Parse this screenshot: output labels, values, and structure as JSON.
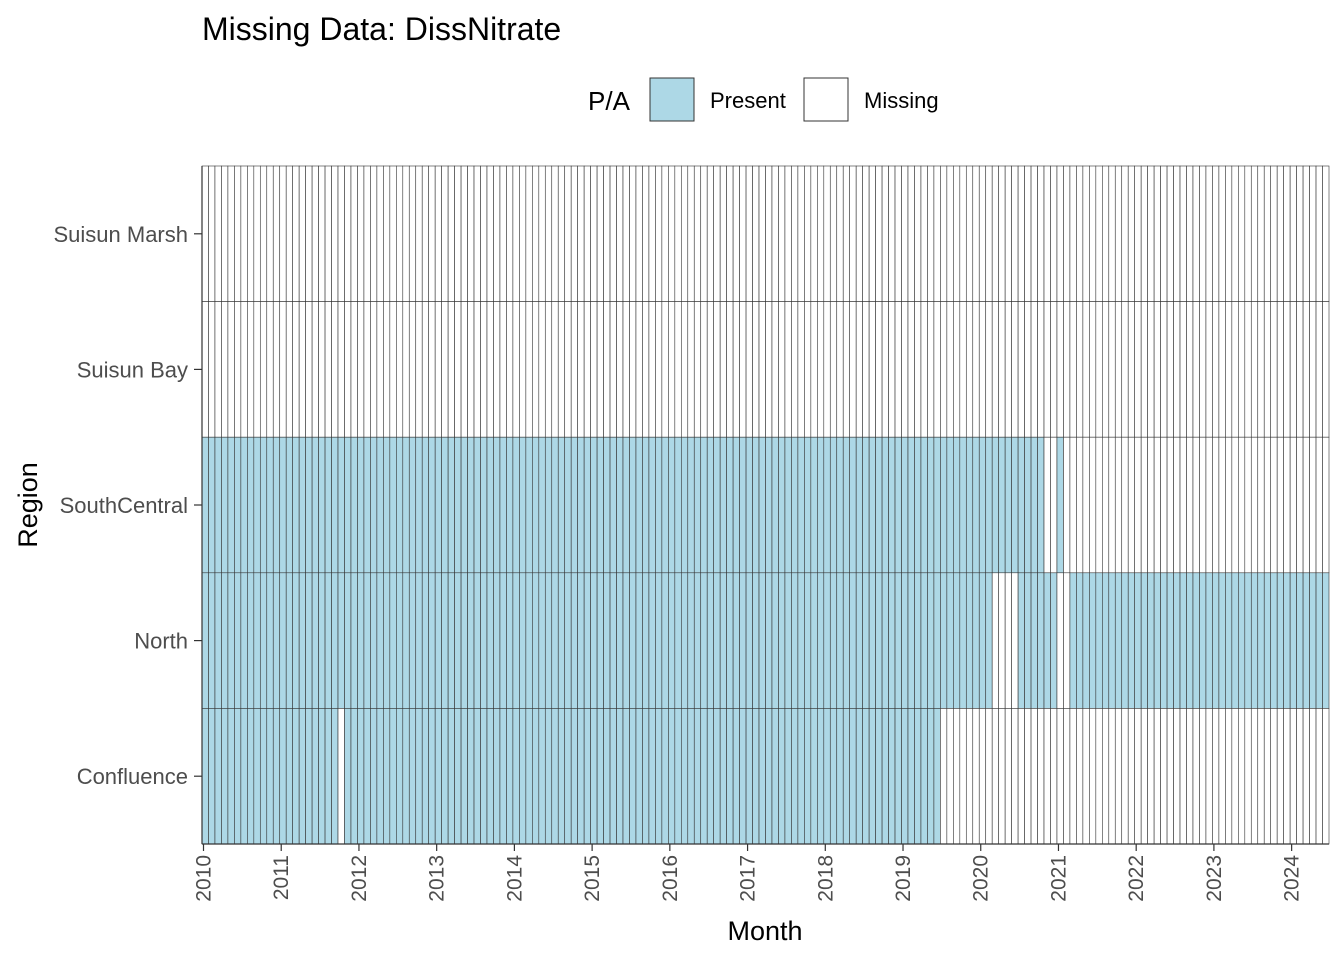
{
  "chart_data": {
    "type": "heatmap",
    "title": "Missing Data: DissNitrate",
    "xlabel": "Month",
    "ylabel": "Region",
    "legend": {
      "title": "P/A",
      "placement": "top",
      "entries": [
        {
          "label": "Present",
          "color": "#add8e6"
        },
        {
          "label": "Missing",
          "color": "#ffffff"
        }
      ]
    },
    "x_range": [
      "2010-01",
      "2024-06"
    ],
    "x_ticks": [
      "2010",
      "2011",
      "2012",
      "2013",
      "2014",
      "2015",
      "2016",
      "2017",
      "2018",
      "2019",
      "2020",
      "2021",
      "2022",
      "2023",
      "2024"
    ],
    "regions": [
      "Suisun Marsh",
      "Suisun Bay",
      "SouthCentral",
      "North",
      "Confluence"
    ],
    "present_periods": {
      "Suisun Marsh": [],
      "Suisun Bay": [],
      "SouthCentral": [
        [
          "2010-01",
          "2020-10"
        ],
        [
          "2021-01",
          "2021-01"
        ]
      ],
      "North": [
        [
          "2010-01",
          "2020-02"
        ],
        [
          "2020-07",
          "2020-12"
        ],
        [
          "2021-03",
          "2024-06"
        ]
      ],
      "Confluence": [
        [
          "2010-01",
          "2011-09"
        ],
        [
          "2011-11",
          "2019-06"
        ]
      ]
    },
    "grid": false
  }
}
